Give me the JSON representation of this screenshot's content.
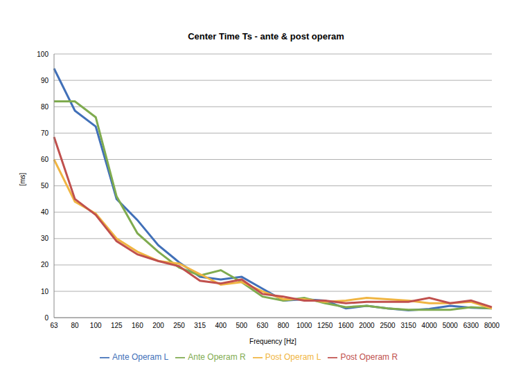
{
  "chart_data": {
    "type": "line",
    "title": "Center Time Ts - ante & post operam",
    "x_label": "Frequency [Hz]",
    "y_label": "[ms]",
    "categories": [
      "63",
      "80",
      "100",
      "125",
      "160",
      "200",
      "250",
      "315",
      "400",
      "500",
      "630",
      "800",
      "1000",
      "1250",
      "1600",
      "2000",
      "2500",
      "3150",
      "4000",
      "5000",
      "6300",
      "8000"
    ],
    "series": [
      {
        "name": "Ante Operam L",
        "color": "#4170b8",
        "values": [
          94.5,
          78.5,
          72.5,
          45,
          37,
          27.5,
          21,
          15.5,
          14.5,
          15.5,
          11,
          6.5,
          7,
          6.5,
          3.5,
          4.5,
          3.5,
          2.8,
          3.3,
          4.5,
          3.8,
          3.5
        ]
      },
      {
        "name": "Ante Operam R",
        "color": "#7fab4f",
        "values": [
          82,
          82,
          76,
          46,
          32,
          25,
          19,
          16,
          18,
          13.5,
          8,
          6.5,
          7.5,
          5.5,
          4,
          4.5,
          3.5,
          3,
          3,
          3,
          4,
          3.5
        ]
      },
      {
        "name": "Post Operam L",
        "color": "#f0b542",
        "values": [
          60,
          44,
          39.5,
          30,
          25,
          21.5,
          20.5,
          16.5,
          12.5,
          13.5,
          10,
          7,
          7,
          6,
          6.5,
          7.5,
          7,
          6.5,
          5.5,
          5.5,
          6,
          3.5
        ]
      },
      {
        "name": "Post Operam R",
        "color": "#c0504d",
        "values": [
          68.5,
          45,
          39,
          29,
          24,
          21.5,
          19.5,
          14,
          13,
          14.5,
          9,
          8,
          6.5,
          6.5,
          5.5,
          6,
          6,
          6,
          7.5,
          5.5,
          6.5,
          4
        ]
      }
    ],
    "ylim": [
      0,
      100
    ],
    "yticks": [
      0,
      10,
      20,
      30,
      40,
      50,
      60,
      70,
      80,
      90,
      100
    ],
    "grid": true,
    "legend": "bottom"
  }
}
